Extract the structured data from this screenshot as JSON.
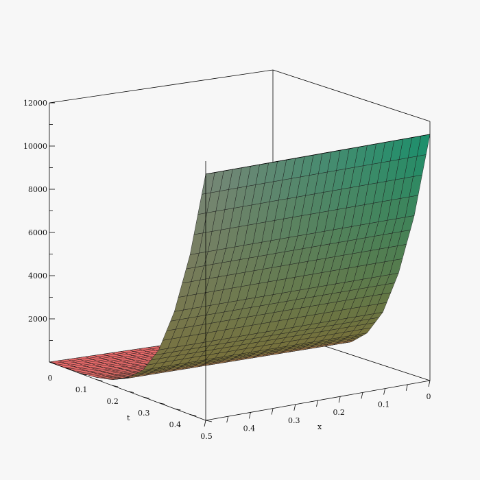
{
  "chart_data": {
    "type": "surface3d",
    "title": "",
    "axes": {
      "x": {
        "label": "x",
        "range": [
          0,
          0.5
        ],
        "ticks": [
          "0",
          "0.1",
          "0.2",
          "0.3",
          "0.4"
        ]
      },
      "t": {
        "label": "t",
        "range": [
          0,
          0.5
        ],
        "ticks": [
          "0",
          "0.1",
          "0.2",
          "0.3",
          "0.4",
          "0.5"
        ]
      },
      "z": {
        "label": "",
        "range": [
          0,
          12000
        ],
        "ticks": [
          "2000",
          "4000",
          "6000",
          "8000",
          "10000",
          "12000"
        ]
      }
    },
    "surface_edge_profile": {
      "t": [
        0,
        0.05,
        0.1,
        0.15,
        0.2,
        0.25,
        0.3,
        0.35,
        0.4,
        0.45,
        0.5
      ],
      "z": [
        0,
        5,
        30,
        100,
        260,
        600,
        1250,
        2450,
        4500,
        7400,
        11400
      ]
    },
    "colors": {
      "background": "#f7f7f7",
      "low": "#e96a6a",
      "mid": "#8a7a3a",
      "high_left": "#7a8a7a",
      "high_right": "#1f8f6a"
    }
  }
}
